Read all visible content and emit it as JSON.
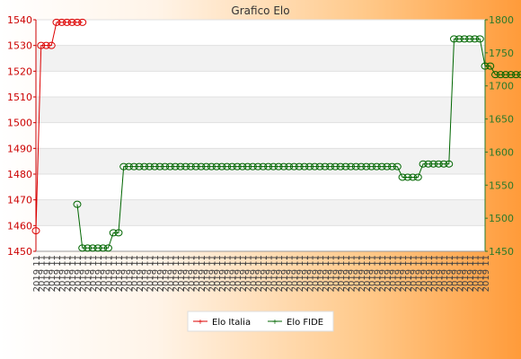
{
  "chart_data": {
    "type": "line",
    "title": "Grafico Elo",
    "left_axis": {
      "ylim": [
        1450,
        1540
      ],
      "ticks": [
        1450,
        1460,
        1470,
        1480,
        1490,
        1500,
        1510,
        1520,
        1530,
        1540
      ],
      "color": "#cc0000"
    },
    "right_axis": {
      "ylim": [
        1450,
        1800
      ],
      "ticks": [
        1450,
        1500,
        1550,
        1600,
        1650,
        1700,
        1750,
        1800
      ],
      "color": "#2a7a2a"
    },
    "x_label_text": "2019 11",
    "x_count": 88,
    "grid": true,
    "legend_position": "bottom",
    "series": [
      {
        "name": "Elo Italia",
        "axis": "left",
        "color": "#dd0000",
        "values": [
          1458,
          1530,
          1530,
          1530,
          1539,
          1539,
          1539,
          1539,
          1539,
          1539
        ]
      },
      {
        "name": "Elo FIDE",
        "axis": "right",
        "color": "#006600",
        "start_index": 8,
        "values": [
          1521,
          1455,
          1455,
          1455,
          1455,
          1455,
          1455,
          1478,
          1478,
          1578,
          1578,
          1578,
          1578,
          1578,
          1578,
          1578,
          1578,
          1578,
          1578,
          1578,
          1578,
          1578,
          1578,
          1578,
          1578,
          1578,
          1578,
          1578,
          1578,
          1578,
          1578,
          1578,
          1578,
          1578,
          1578,
          1578,
          1578,
          1578,
          1578,
          1578,
          1578,
          1578,
          1578,
          1578,
          1578,
          1578,
          1578,
          1578,
          1578,
          1578,
          1578,
          1578,
          1578,
          1578,
          1578,
          1578,
          1578,
          1578,
          1578,
          1578,
          1578,
          1578,
          1578,
          1562,
          1562,
          1562,
          1562,
          1582,
          1582,
          1582,
          1582,
          1582,
          1582,
          1771,
          1771,
          1771,
          1771,
          1771,
          1771,
          1730,
          1730,
          1717,
          1717,
          1717,
          1717,
          1717,
          1717,
          1717,
          1717,
          1717
        ]
      }
    ]
  }
}
